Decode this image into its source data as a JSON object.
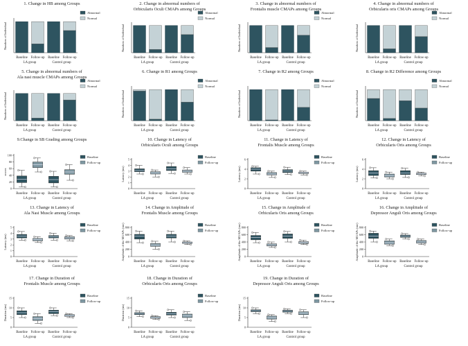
{
  "colors": {
    "abnormal": "#2e5460",
    "normal": "#c4d2d6",
    "baseline": "#2e5460",
    "followup": "#7e97a1",
    "axis": "#333333"
  },
  "group_labels": [
    "LA group",
    "Control group"
  ],
  "chart_data": [
    {
      "id": 1,
      "type": "bar",
      "title": [
        "1. Change in HB among Groups"
      ],
      "ylabel": "Numbers of Individual",
      "categories": [
        "Baseline",
        "Follow-up",
        "Baseline",
        "Follow-up"
      ],
      "ylim": [
        0,
        45
      ],
      "series": [
        {
          "name": "Abnormal",
          "values": [
            42,
            12,
            42,
            30
          ]
        },
        {
          "name": "Normal",
          "values": [
            0,
            30,
            0,
            12
          ]
        }
      ]
    },
    {
      "id": 2,
      "type": "bar",
      "title": [
        "2. Change in abnormal numbers of",
        "Orbicularis Oculi CMAPs among Groups"
      ],
      "ylabel": "Numbers of Individual",
      "categories": [
        "Baseline",
        "Follow-up",
        "Baseline",
        "Follow-up"
      ],
      "ylim": [
        0,
        45
      ],
      "series": [
        {
          "name": "Abnormal",
          "values": [
            42,
            5,
            42,
            28
          ]
        },
        {
          "name": "Normal",
          "values": [
            0,
            37,
            0,
            14
          ]
        }
      ]
    },
    {
      "id": 3,
      "type": "bar",
      "title": [
        "3. Change in abnormal numbers of",
        "Frontalis muscle CMAPs among Groups"
      ],
      "ylabel": "Numbers of Individual",
      "categories": [
        "Baseline",
        "Follow-up",
        "Baseline",
        "Follow-up"
      ],
      "ylim": [
        0,
        45
      ],
      "series": [
        {
          "name": "Abnormal",
          "values": [
            42,
            8,
            42,
            27
          ]
        },
        {
          "name": "Normal",
          "values": [
            0,
            34,
            0,
            15
          ]
        }
      ]
    },
    {
      "id": 4,
      "type": "bar",
      "title": [
        "4. Change in abnormal numbers of",
        "Orbicularis oris CMAPs among Groups"
      ],
      "ylabel": "Numbers of Individual",
      "categories": [
        "Baseline",
        "Follow-up",
        "Baseline",
        "Follow-up"
      ],
      "ylim": [
        0,
        45
      ],
      "series": [
        {
          "name": "Abnormal",
          "values": [
            42,
            6,
            42,
            25
          ]
        },
        {
          "name": "Normal",
          "values": [
            0,
            36,
            0,
            17
          ]
        }
      ]
    },
    {
      "id": 5,
      "type": "bar",
      "title": [
        "5. Change in abnormal numbers of",
        "Ala nasi muscle CMAPs among Groups"
      ],
      "ylabel": "Numbers of Individual",
      "categories": [
        "Baseline",
        "Follow-up",
        "Baseline",
        "Follow-up"
      ],
      "ylim": [
        0,
        45
      ],
      "series": [
        {
          "name": "Abnormal",
          "values": [
            42,
            4,
            42,
            32
          ]
        },
        {
          "name": "Normal",
          "values": [
            0,
            38,
            0,
            10
          ]
        }
      ]
    },
    {
      "id": 6,
      "type": "bar",
      "title": [
        "6. Change in R1 among Groups"
      ],
      "ylabel": "Numbers of Individual",
      "categories": [
        "Baseline",
        "Follow-up",
        "Baseline",
        "Follow-up"
      ],
      "ylim": [
        0,
        45
      ],
      "series": [
        {
          "name": "Abnormal",
          "values": [
            40,
            2,
            42,
            25
          ]
        },
        {
          "name": "Normal",
          "values": [
            2,
            40,
            0,
            17
          ]
        }
      ]
    },
    {
      "id": 7,
      "type": "bar",
      "title": [
        "7. Change in R2 among Groups"
      ],
      "ylabel": "Numbers of Individual",
      "categories": [
        "Baseline",
        "Follow-up",
        "Baseline",
        "Follow-up"
      ],
      "ylim": [
        0,
        45
      ],
      "series": [
        {
          "name": "Abnormal",
          "values": [
            42,
            1,
            42,
            18
          ]
        },
        {
          "name": "Normal",
          "values": [
            0,
            41,
            0,
            24
          ]
        }
      ]
    },
    {
      "id": 8,
      "type": "bar",
      "title": [
        "8. Change in R2 Difference among Groups"
      ],
      "ylabel": "Numbers of Individual",
      "categories": [
        "Baseline",
        "Follow-up",
        "Baseline",
        "Follow-up"
      ],
      "ylim": [
        0,
        45
      ],
      "series": [
        {
          "name": "Abnormal",
          "values": [
            30,
            3,
            27,
            17
          ]
        },
        {
          "name": "Normal",
          "values": [
            12,
            39,
            15,
            25
          ]
        }
      ]
    },
    {
      "id": 9,
      "type": "box",
      "title": [
        "9.Change in SB Grading among Groups"
      ],
      "ylabel": "scores",
      "categories": [
        "Baseline",
        "Follow-up",
        "Baseline",
        "Follow-up"
      ],
      "ylim": [
        0,
        100
      ],
      "yticks": [
        0,
        20,
        40,
        60,
        80,
        100
      ],
      "legend": [
        "Baseline",
        "Follow-up"
      ],
      "boxes": [
        {
          "min": 5,
          "q1": 18,
          "median": 28,
          "q3": 38,
          "max": 55
        },
        {
          "min": 50,
          "q1": 63,
          "median": 72,
          "q3": 80,
          "max": 92
        },
        {
          "min": 5,
          "q1": 17,
          "median": 27,
          "q3": 37,
          "max": 52
        },
        {
          "min": 25,
          "q1": 43,
          "median": 50,
          "q3": 57,
          "max": 72
        }
      ]
    },
    {
      "id": 10,
      "type": "box",
      "title": [
        "10. Change in Latency of",
        "Orbicularis Oculi among Groups"
      ],
      "ylabel": "Latency (ms)",
      "categories": [
        "Baseline",
        "Follow-up",
        "Baseline",
        "Follow-up"
      ],
      "ylim": [
        0,
        5
      ],
      "yticks": [
        0,
        1,
        2,
        3,
        4,
        5
      ],
      "legend": [
        "Baseline",
        "Follow-up"
      ],
      "boxes": [
        {
          "min": 2.5,
          "q1": 2.9,
          "median": 3.1,
          "q3": 3.4,
          "max": 4.0
        },
        {
          "min": 2.0,
          "q1": 2.5,
          "median": 2.7,
          "q3": 2.9,
          "max": 3.2
        },
        {
          "min": 2.6,
          "q1": 3.1,
          "median": 3.4,
          "q3": 3.8,
          "max": 4.4
        },
        {
          "min": 2.5,
          "q1": 2.8,
          "median": 3.0,
          "q3": 3.2,
          "max": 3.6
        }
      ]
    },
    {
      "id": 11,
      "type": "box",
      "title": [
        "11. Change in Latency of",
        "Frontalis Muscle among Groups"
      ],
      "ylabel": "Latency (ms)",
      "categories": [
        "Baseline",
        "Follow-up",
        "Baseline",
        "Follow-up"
      ],
      "ylim": [
        0,
        6
      ],
      "yticks": [
        0,
        2,
        4,
        6
      ],
      "legend": [
        "Baseline",
        "Follow-up"
      ],
      "boxes": [
        {
          "min": 3.0,
          "q1": 3.6,
          "median": 4.0,
          "q3": 4.3,
          "max": 4.6
        },
        {
          "min": 2.3,
          "q1": 2.8,
          "median": 3.0,
          "q3": 3.3,
          "max": 3.6
        },
        {
          "min": 2.9,
          "q1": 3.3,
          "median": 3.6,
          "q3": 3.9,
          "max": 4.4
        },
        {
          "min": 2.8,
          "q1": 3.1,
          "median": 3.3,
          "q3": 3.4,
          "max": 3.6
        }
      ]
    },
    {
      "id": 12,
      "type": "box",
      "title": [
        "12. Change in Latency of",
        "Orbicularis Oris among Groups"
      ],
      "ylabel": "Latency (ms)",
      "categories": [
        "Baseline",
        "Follow-up",
        "Baseline",
        "Follow-up"
      ],
      "ylim": [
        0,
        6
      ],
      "yticks": [
        0,
        2,
        4,
        6
      ],
      "legend": [
        "Baseline",
        "Follow-up"
      ],
      "boxes": [
        {
          "min": 2.2,
          "q1": 2.7,
          "median": 3.2,
          "q3": 3.7,
          "max": 4.3
        },
        {
          "min": 2.0,
          "q1": 2.4,
          "median": 2.7,
          "q3": 3.0,
          "max": 3.4
        },
        {
          "min": 2.3,
          "q1": 2.9,
          "median": 3.2,
          "q3": 3.7,
          "max": 4.2
        },
        {
          "min": 2.6,
          "q1": 2.9,
          "median": 3.1,
          "q3": 3.2,
          "max": 3.4
        }
      ]
    },
    {
      "id": 13,
      "type": "box",
      "title": [
        "13. Change in Latency of",
        "Ala Nasi Muscle among Groups"
      ],
      "ylabel": "Latency (ms)",
      "categories": [
        "Baseline",
        "Follow-up",
        "Baseline",
        "Follow-up"
      ],
      "ylim": [
        0,
        5
      ],
      "yticks": [
        0,
        1,
        2,
        3,
        4,
        5
      ],
      "legend": [
        "Baseline",
        "Follow-up"
      ],
      "boxes": [
        {
          "min": 2.8,
          "q1": 3.2,
          "median": 3.5,
          "q3": 3.8,
          "max": 4.3
        },
        {
          "min": 2.4,
          "q1": 2.7,
          "median": 2.9,
          "q3": 3.1,
          "max": 3.4
        },
        {
          "min": 2.8,
          "q1": 3.2,
          "median": 3.4,
          "q3": 3.6,
          "max": 4.0
        },
        {
          "min": 2.7,
          "q1": 3.0,
          "median": 3.2,
          "q3": 3.4,
          "max": 3.6
        }
      ]
    },
    {
      "id": 14,
      "type": "box",
      "title": [
        "14. Change in Amplitude of",
        "Frontalis Muscle among Groups"
      ],
      "ylabel": "Amplitude of the MUAPs (mv)",
      "categories": [
        "Baseline",
        "Follow-up",
        "Baseline",
        "Follow-up"
      ],
      "ylim": [
        0,
        800
      ],
      "yticks": [
        0,
        200,
        400,
        600,
        800
      ],
      "legend": [
        "Baseline",
        "Follow-up"
      ],
      "boxes": [
        {
          "min": 380,
          "q1": 480,
          "median": 560,
          "q3": 610,
          "max": 700
        },
        {
          "min": 200,
          "q1": 280,
          "median": 320,
          "q3": 360,
          "max": 420
        },
        {
          "min": 400,
          "q1": 510,
          "median": 560,
          "q3": 610,
          "max": 700
        },
        {
          "min": 330,
          "q1": 360,
          "median": 380,
          "q3": 400,
          "max": 430
        }
      ]
    },
    {
      "id": 15,
      "type": "box",
      "title": [
        "15. Change in Amplitude of",
        "Orbicularis Oris among Groups"
      ],
      "ylabel": "Amplitude of the MUAPs (mv)",
      "categories": [
        "Baseline",
        "Follow-up",
        "Baseline",
        "Follow-up"
      ],
      "ylim": [
        0,
        800
      ],
      "yticks": [
        0,
        200,
        400,
        600,
        800
      ],
      "legend": [
        "Baseline",
        "Follow-up"
      ],
      "boxes": [
        {
          "min": 380,
          "q1": 460,
          "median": 520,
          "q3": 580,
          "max": 660
        },
        {
          "min": 250,
          "q1": 290,
          "median": 320,
          "q3": 350,
          "max": 400
        },
        {
          "min": 400,
          "q1": 500,
          "median": 560,
          "q3": 620,
          "max": 690
        },
        {
          "min": 330,
          "q1": 360,
          "median": 390,
          "q3": 410,
          "max": 450
        }
      ]
    },
    {
      "id": 16,
      "type": "box",
      "title": [
        "16. Change in Amplitude of",
        "Depressor Anguli Oris among Groups"
      ],
      "ylabel": "Amplitude of the MUAPs (mv)",
      "categories": [
        "Baseline",
        "Follow-up",
        "Baseline",
        "Follow-up"
      ],
      "ylim": [
        0,
        800
      ],
      "yticks": [
        0,
        200,
        400,
        600,
        800
      ],
      "legend": [
        "Baseline",
        "Follow-up"
      ],
      "boxes": [
        {
          "min": 400,
          "q1": 500,
          "median": 560,
          "q3": 640,
          "max": 700
        },
        {
          "min": 300,
          "q1": 340,
          "median": 380,
          "q3": 430,
          "max": 480
        },
        {
          "min": 480,
          "q1": 530,
          "median": 560,
          "q3": 590,
          "max": 630
        },
        {
          "min": 330,
          "q1": 370,
          "median": 400,
          "q3": 440,
          "max": 480
        }
      ]
    },
    {
      "id": 17,
      "type": "box",
      "title": [
        "17. Change in Duration of",
        "Frontalis Muscle among Groups"
      ],
      "ylabel": "Duration (ms)",
      "categories": [
        "Baseline",
        "Follow-up",
        "Baseline",
        "Follow-up"
      ],
      "ylim": [
        0,
        15
      ],
      "yticks": [
        0,
        5,
        10,
        15
      ],
      "legend": [
        "Baseline",
        "Follow-up"
      ],
      "boxes": [
        {
          "min": 5,
          "q1": 6.5,
          "median": 7.5,
          "q3": 8.5,
          "max": 10
        },
        {
          "min": 2,
          "q1": 3.5,
          "median": 4.5,
          "q3": 5.5,
          "max": 7
        },
        {
          "min": 6,
          "q1": 7,
          "median": 8,
          "q3": 8.8,
          "max": 10
        },
        {
          "min": 5,
          "q1": 5.6,
          "median": 6,
          "q3": 6.5,
          "max": 7
        }
      ]
    },
    {
      "id": 18,
      "type": "box",
      "title": [
        "18. Change in Duration of",
        "Orbicularis Oris among Groups"
      ],
      "ylabel": "Duration (ms)",
      "categories": [
        "Baseline",
        "Follow-up",
        "Baseline",
        "Follow-up"
      ],
      "ylim": [
        0,
        15
      ],
      "yticks": [
        0,
        5,
        10,
        15
      ],
      "legend": [
        "Baseline",
        "Follow-up"
      ],
      "boxes": [
        {
          "min": 5.5,
          "q1": 6.5,
          "median": 7,
          "q3": 7.5,
          "max": 8.5
        },
        {
          "min": 4,
          "q1": 4.6,
          "median": 5,
          "q3": 5.5,
          "max": 6
        },
        {
          "min": 5,
          "q1": 6.3,
          "median": 7,
          "q3": 7.7,
          "max": 9
        },
        {
          "min": 3.5,
          "q1": 5,
          "median": 6,
          "q3": 6.8,
          "max": 8
        }
      ]
    },
    {
      "id": 19,
      "type": "box",
      "title": [
        "19. Change in Duration of",
        "Depressor Anguli Oris among Groups"
      ],
      "ylabel": "Duration (ms)",
      "categories": [
        "Baseline",
        "Follow-up",
        "Baseline",
        "Follow-up"
      ],
      "ylim": [
        0,
        15
      ],
      "yticks": [
        0,
        5,
        10,
        15
      ],
      "legend": [
        "Baseline",
        "Follow-up"
      ],
      "boxes": [
        {
          "min": 7,
          "q1": 8,
          "median": 8.5,
          "q3": 9,
          "max": 10
        },
        {
          "min": 3,
          "q1": 4.2,
          "median": 5,
          "q3": 5.8,
          "max": 6.5
        },
        {
          "min": 7,
          "q1": 7.8,
          "median": 8.3,
          "q3": 8.8,
          "max": 9.5
        },
        {
          "min": 5,
          "q1": 6.5,
          "median": 7.3,
          "q3": 8,
          "max": 9
        }
      ]
    }
  ]
}
